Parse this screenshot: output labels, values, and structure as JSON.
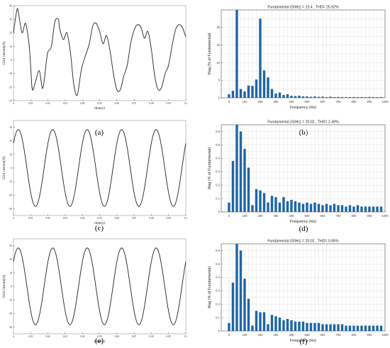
{
  "colors": {
    "bar": "#1f65a8",
    "line": "#222222",
    "grid": "#dcdcdc",
    "axes": "#555555"
  },
  "chart_data": [
    {
      "id": "a",
      "panel_label": "(a)",
      "type": "line",
      "title": "",
      "xlabel": "time(s)",
      "ylabel": "Grid current(A)",
      "xlim": [
        0,
        0.1
      ],
      "ylim": [
        -30,
        40
      ],
      "xticks": [
        0,
        0.01,
        0.02,
        0.03,
        0.04,
        0.05,
        0.06,
        0.07,
        0.08,
        0.09,
        0.1
      ],
      "xtick_labels": [
        "0",
        "0.01",
        "0.02",
        "0.03",
        "0.04",
        "0.05",
        "0.06",
        "0.07",
        "0.08",
        "0.09",
        "0.1"
      ],
      "yticks": [
        -30,
        -20,
        -10,
        0,
        10,
        20,
        30,
        40
      ],
      "ytick_labels": [
        "-30",
        "-20",
        "-10",
        "0",
        "10",
        "20",
        "30",
        "40"
      ],
      "x": [
        0,
        0.002,
        0.003,
        0.005,
        0.007,
        0.009,
        0.01,
        0.011,
        0.013,
        0.015,
        0.017,
        0.019,
        0.02,
        0.022,
        0.024,
        0.026,
        0.027,
        0.029,
        0.031,
        0.033,
        0.035,
        0.037,
        0.039,
        0.04,
        0.042,
        0.044,
        0.046,
        0.048,
        0.05,
        0.052,
        0.054,
        0.056,
        0.058,
        0.06,
        0.062,
        0.064,
        0.066,
        0.068,
        0.07,
        0.072,
        0.074,
        0.076,
        0.078,
        0.08,
        0.082,
        0.084,
        0.086,
        0.088,
        0.09,
        0.092,
        0.094,
        0.096,
        0.098,
        0.1
      ],
      "y": [
        20,
        37,
        34,
        20,
        27,
        12,
        -5,
        -22,
        -15,
        -8,
        -21,
        -2,
        6,
        10,
        28,
        30,
        22,
        15,
        20,
        6,
        -18,
        -26,
        -10,
        -4,
        4,
        12,
        25,
        27,
        21,
        12,
        18,
        7,
        -10,
        -22,
        -22,
        -12,
        -4,
        12,
        22,
        26,
        24,
        16,
        21,
        8,
        -12,
        -22,
        -20,
        -10,
        -4,
        10,
        22,
        26,
        24,
        17
      ]
    },
    {
      "id": "b",
      "panel_label": "(b)",
      "type": "bar",
      "title": "Fundamental (50Hz) = 23.4 , THD= 25.92%",
      "xlabel": "Frequency (Hz)",
      "ylabel": "Mag (% of Fundamental)",
      "xlim": [
        -50,
        1000
      ],
      "ylim": [
        0,
        25
      ],
      "xticks": [
        0,
        100,
        200,
        300,
        400,
        500,
        600,
        700,
        800,
        900,
        1000
      ],
      "yticks": [
        0,
        5,
        10,
        15,
        20
      ],
      "x": [
        0,
        25,
        50,
        75,
        100,
        125,
        150,
        175,
        200,
        225,
        250,
        275,
        300,
        325,
        350,
        375,
        400,
        425,
        450,
        475,
        500,
        525,
        550,
        575,
        600,
        625,
        650,
        675,
        700,
        725,
        750,
        775,
        800,
        825,
        850,
        875,
        900,
        925,
        950,
        975
      ],
      "values": [
        1.0,
        2.0,
        25.0,
        2.5,
        1.8,
        3.5,
        3.4,
        5.2,
        22.5,
        7.8,
        5.8,
        2.5,
        1.2,
        1.5,
        0.8,
        1.0,
        0.6,
        0.5,
        0.6,
        0.4,
        0.4,
        0.3,
        0.4,
        0.3,
        0.3,
        0.2,
        0.3,
        0.2,
        0.2,
        0.2,
        0.2,
        0.2,
        0.2,
        0.2,
        0.2,
        0.2,
        0.2,
        0.2,
        0.2,
        0.2
      ]
    },
    {
      "id": "c",
      "panel_label": "(c)",
      "type": "line",
      "title": "",
      "xlabel": "time(s)",
      "ylabel": "Grid current(A)",
      "xlim": [
        0,
        0.1
      ],
      "ylim": [
        -35,
        35
      ],
      "xticks": [
        0,
        0.01,
        0.02,
        0.03,
        0.04,
        0.05,
        0.06,
        0.07,
        0.08,
        0.09,
        0.1
      ],
      "xtick_labels": [
        "0",
        "0.01",
        "0.02",
        "0.03",
        "0.04",
        "0.05",
        "0.06",
        "0.07",
        "0.08",
        "0.09",
        "0.1"
      ],
      "yticks": [
        -30,
        -20,
        -10,
        0,
        10,
        20,
        30
      ],
      "ytick_labels": [
        "-30",
        "-20",
        "-10",
        "0",
        "10",
        "20",
        "30"
      ],
      "amplitude": 28.3,
      "frequency_hz": 50,
      "phase_deg": 40
    },
    {
      "id": "d",
      "panel_label": "(d)",
      "type": "bar",
      "title": "Fundamental (50Hz) = 20.02 , THD= 2.49%",
      "xlabel": "Frequency (Hz)",
      "ylabel": "Mag (% of Fundamental)",
      "xlim": [
        -50,
        1000
      ],
      "ylim": [
        0,
        0.65
      ],
      "xticks": [
        0,
        100,
        200,
        300,
        400,
        500,
        600,
        700,
        800,
        900,
        1000
      ],
      "yticks": [
        0,
        0.1,
        0.2,
        0.3,
        0.4,
        0.5,
        0.6
      ],
      "x": [
        0,
        25,
        50,
        75,
        100,
        125,
        150,
        175,
        200,
        225,
        250,
        275,
        300,
        325,
        350,
        375,
        400,
        425,
        450,
        475,
        500,
        525,
        550,
        575,
        600,
        625,
        650,
        675,
        700,
        725,
        750,
        775,
        800,
        825,
        850,
        875,
        900,
        925,
        950,
        975
      ],
      "values": [
        0.07,
        0.38,
        0.65,
        0.6,
        0.47,
        0.33,
        0.05,
        0.17,
        0.16,
        0.14,
        0.07,
        0.12,
        0.11,
        0.07,
        0.11,
        0.08,
        0.09,
        0.08,
        0.07,
        0.06,
        0.07,
        0.06,
        0.07,
        0.06,
        0.05,
        0.06,
        0.05,
        0.06,
        0.05,
        0.05,
        0.04,
        0.05,
        0.04,
        0.05,
        0.04,
        0.04,
        0.04,
        0.04,
        0.04,
        0.04
      ]
    },
    {
      "id": "e",
      "panel_label": "(e)",
      "type": "line",
      "title": "",
      "xlabel": "time(s)",
      "ylabel": "Grid current(A)",
      "xlim": [
        0,
        0.1
      ],
      "ylim": [
        -35,
        35
      ],
      "xticks": [
        0,
        0.01,
        0.02,
        0.03,
        0.04,
        0.05,
        0.06,
        0.07,
        0.08,
        0.09,
        0.1
      ],
      "xtick_labels": [
        "0",
        "0.01",
        "0.02",
        "0.03",
        "0.04",
        "0.05",
        "0.06",
        "0.07",
        "0.08",
        "0.09",
        "0.1"
      ],
      "yticks": [
        -30,
        -20,
        -10,
        0,
        10,
        20,
        30
      ],
      "ytick_labels": [
        "-30",
        "-20",
        "-10",
        "0",
        "10",
        "20",
        "30"
      ],
      "amplitude": 28.3,
      "frequency_hz": 50,
      "phase_deg": 40
    },
    {
      "id": "f",
      "panel_label": "(f)",
      "type": "bar",
      "title": "Fundamental (50Hz) = 20.02 , THD= 0.95%",
      "xlabel": "Frequency (Hz)",
      "ylabel": "Mag (% of Fundamental)",
      "xlim": [
        -50,
        1000
      ],
      "ylim": [
        0,
        0.65
      ],
      "xticks": [
        0,
        100,
        200,
        300,
        400,
        500,
        600,
        700,
        800,
        900,
        1000
      ],
      "yticks": [
        0,
        0.1,
        0.2,
        0.3,
        0.4,
        0.5,
        0.6
      ],
      "x": [
        0,
        25,
        50,
        75,
        100,
        125,
        150,
        175,
        200,
        225,
        250,
        275,
        300,
        325,
        350,
        375,
        400,
        425,
        450,
        475,
        500,
        525,
        550,
        575,
        600,
        625,
        650,
        675,
        700,
        725,
        750,
        775,
        800,
        825,
        850,
        875,
        900,
        925,
        950,
        975
      ],
      "values": [
        0.06,
        0.36,
        0.65,
        0.6,
        0.39,
        0.24,
        0.04,
        0.15,
        0.14,
        0.14,
        0.05,
        0.12,
        0.11,
        0.1,
        0.08,
        0.09,
        0.08,
        0.07,
        0.07,
        0.07,
        0.06,
        0.06,
        0.06,
        0.06,
        0.05,
        0.05,
        0.05,
        0.05,
        0.05,
        0.05,
        0.04,
        0.04,
        0.04,
        0.04,
        0.04,
        0.04,
        0.04,
        0.04,
        0.04,
        0.04
      ]
    }
  ]
}
